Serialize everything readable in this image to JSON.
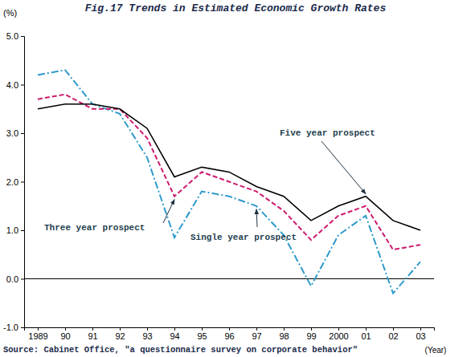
{
  "chart_data": {
    "type": "line",
    "title": "Fig.17 Trends in Estimated Economic Growth Rates",
    "y_label": "(%)",
    "x_label": "(Year)",
    "source": "Source: Cabinet Office, \"a questionnaire survey on corporate behavior\"",
    "categories": [
      "1989",
      "90",
      "91",
      "92",
      "93",
      "94",
      "95",
      "96",
      "97",
      "98",
      "99",
      "2000",
      "01",
      "02",
      "03"
    ],
    "series": [
      {
        "name": "Five year prospect",
        "color": "#000000",
        "line_style": "solid",
        "values": [
          3.5,
          3.6,
          3.6,
          3.5,
          3.1,
          2.1,
          2.3,
          2.2,
          1.9,
          1.7,
          1.2,
          1.5,
          1.7,
          1.2,
          1.0
        ]
      },
      {
        "name": "Three year prospect",
        "color": "#cc1a6e",
        "line_style": "dashed",
        "values": [
          3.7,
          3.8,
          3.5,
          3.5,
          2.9,
          1.7,
          2.2,
          2.0,
          1.8,
          1.4,
          0.8,
          1.3,
          1.5,
          0.6,
          0.7
        ]
      },
      {
        "name": "Single year prospect",
        "color": "#2e9acb",
        "line_style": "dashdot",
        "values": [
          4.2,
          4.3,
          3.6,
          3.4,
          2.5,
          0.85,
          1.8,
          1.7,
          1.5,
          0.9,
          -0.15,
          0.9,
          1.3,
          -0.3,
          0.35
        ]
      }
    ],
    "ylim": [
      -1,
      5
    ],
    "yticks": [
      {
        "value": -1,
        "label": "-1.0"
      },
      {
        "value": 0,
        "label": "0.0"
      },
      {
        "value": 1,
        "label": "1.0"
      },
      {
        "value": 2,
        "label": "2.0"
      },
      {
        "value": 3,
        "label": "3.0"
      },
      {
        "value": 4,
        "label": "4.0"
      },
      {
        "value": 5,
        "label": "5.0"
      }
    ],
    "grid": false
  }
}
